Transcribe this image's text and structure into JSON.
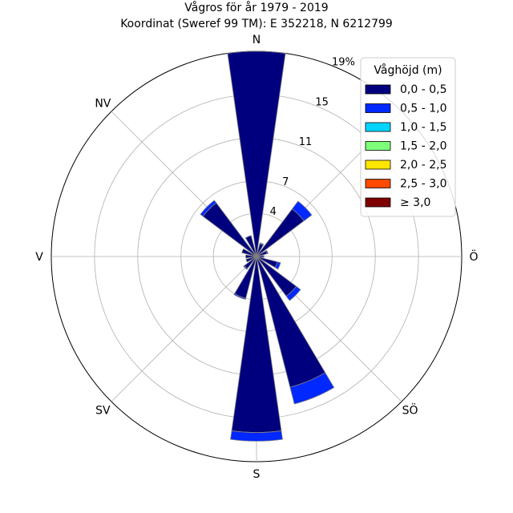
{
  "title_line1": "Vågros för år 1979 - 2019",
  "title_line2": "Koordinat (Sweref 99 TM): E 352218, N 6212799",
  "chart_data": {
    "type": "wind-rose (stacked polar bar)",
    "title": "Vågros för år 1979 - 2019",
    "subtitle": "Koordinat (Sweref 99 TM): E 352218, N 6212799",
    "directions": [
      "N",
      "NNÖ",
      "NÖ",
      "ÖNÖ",
      "Ö",
      "ÖSÖ",
      "SÖ",
      "SSÖ",
      "S",
      "SSV",
      "SV",
      "VSV",
      "V",
      "VNV",
      "NV",
      "NNV"
    ],
    "direction_angles_deg": [
      0,
      22.5,
      45,
      67.5,
      90,
      112.5,
      135,
      157.5,
      180,
      202.5,
      225,
      247.5,
      270,
      292.5,
      315,
      337.5
    ],
    "direction_labels": [
      {
        "label": "N",
        "angle": 0
      },
      {
        "label": "NV",
        "angle": 315
      },
      {
        "label": "Ö",
        "angle": 90
      },
      {
        "label": "SÖ",
        "angle": 135
      },
      {
        "label": "S",
        "angle": 180
      },
      {
        "label": "SV",
        "angle": 225
      },
      {
        "label": "V",
        "angle": 270
      }
    ],
    "radial_unit": "%",
    "radial_ticks": [
      4,
      7,
      11,
      15,
      19
    ],
    "radial_tick_labels": [
      "4",
      "7",
      "11",
      "15",
      "19%"
    ],
    "rmax": 19,
    "legend_title": "Våghöjd (m)",
    "legend_position": "top-right",
    "series": [
      {
        "name": "0,0 - 0,5",
        "color": "#00007f",
        "values": [
          19.0,
          1.2,
          5.5,
          1.0,
          0.6,
          2.0,
          4.6,
          12.5,
          16.3,
          4.0,
          1.4,
          1.0,
          1.0,
          1.4,
          6.2,
          2.0
        ]
      },
      {
        "name": "0,5 - 1,0",
        "color": "#0028ff",
        "values": [
          0.0,
          0.1,
          0.9,
          0.1,
          0.1,
          0.3,
          0.5,
          1.6,
          0.8,
          0.1,
          0.1,
          0.0,
          0.0,
          0.0,
          0.3,
          0.0
        ]
      },
      {
        "name": "1,0 - 1,5",
        "color": "#00d4ff",
        "values": [
          0,
          0,
          0,
          0,
          0,
          0,
          0,
          0,
          0,
          0,
          0,
          0,
          0,
          0,
          0,
          0
        ]
      },
      {
        "name": "1,5 - 2,0",
        "color": "#7dff7a",
        "values": [
          0,
          0,
          0,
          0,
          0,
          0,
          0,
          0,
          0,
          0,
          0,
          0,
          0,
          0,
          0,
          0
        ]
      },
      {
        "name": "2,0 - 2,5",
        "color": "#ffe500",
        "values": [
          0,
          0,
          0,
          0,
          0,
          0,
          0,
          0,
          0,
          0,
          0,
          0,
          0,
          0,
          0,
          0
        ]
      },
      {
        "name": "2,5 - 3,0",
        "color": "#ff4a00",
        "values": [
          0,
          0,
          0,
          0,
          0,
          0,
          0,
          0,
          0,
          0,
          0,
          0,
          0,
          0,
          0,
          0
        ]
      },
      {
        "name": "≥ 3,0",
        "color": "#7f0000",
        "values": [
          0,
          0,
          0,
          0,
          0,
          0,
          0,
          0,
          0,
          0,
          0,
          0,
          0,
          0,
          0,
          0
        ]
      }
    ],
    "grid": true
  }
}
